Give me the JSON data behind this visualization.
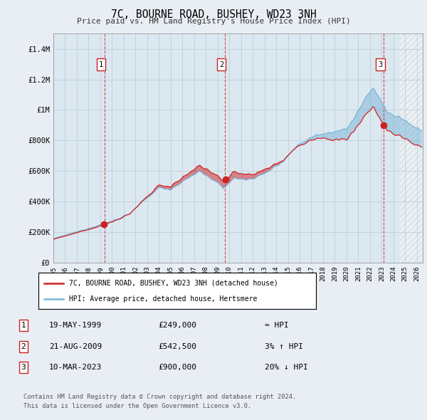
{
  "title": "7C, BOURNE ROAD, BUSHEY, WD23 3NH",
  "subtitle": "Price paid vs. HM Land Registry's House Price Index (HPI)",
  "legend_line1": "7C, BOURNE ROAD, BUSHEY, WD23 3NH (detached house)",
  "legend_line2": "HPI: Average price, detached house, Hertsmere",
  "footer1": "Contains HM Land Registry data © Crown copyright and database right 2024.",
  "footer2": "This data is licensed under the Open Government Licence v3.0.",
  "sale_year_floats": [
    1999.37,
    2009.63,
    2023.19
  ],
  "sale_prices": [
    249000,
    542500,
    900000
  ],
  "sale_labels": [
    "1",
    "2",
    "3"
  ],
  "table_rows": [
    [
      "1",
      "19-MAY-1999",
      "£249,000",
      "≈ HPI"
    ],
    [
      "2",
      "21-AUG-2009",
      "£542,500",
      "3% ↑ HPI"
    ],
    [
      "3",
      "10-MAR-2023",
      "£900,000",
      "20% ↓ HPI"
    ]
  ],
  "hpi_color": "#7ab4d8",
  "price_color": "#cc2222",
  "fill_color": "#c8dce8",
  "background_color": "#e8eef4",
  "plot_bg": "#dce8f0",
  "grid_color": "#b8c8d4",
  "hatch_color": "#b8c8d4",
  "ylim": [
    0,
    1500000
  ],
  "yticks": [
    0,
    200000,
    400000,
    600000,
    800000,
    1000000,
    1200000,
    1400000
  ],
  "ytick_labels": [
    "£0",
    "£200K",
    "£400K",
    "£600K",
    "£800K",
    "£1M",
    "£1.2M",
    "£1.4M"
  ],
  "xmin_year": 1995.0,
  "xmax_year": 2026.5,
  "xtick_years": [
    1995,
    1996,
    1997,
    1998,
    1999,
    2000,
    2001,
    2002,
    2003,
    2004,
    2005,
    2006,
    2007,
    2008,
    2009,
    2010,
    2011,
    2012,
    2013,
    2014,
    2015,
    2016,
    2017,
    2018,
    2019,
    2020,
    2021,
    2022,
    2023,
    2024,
    2025,
    2026
  ]
}
